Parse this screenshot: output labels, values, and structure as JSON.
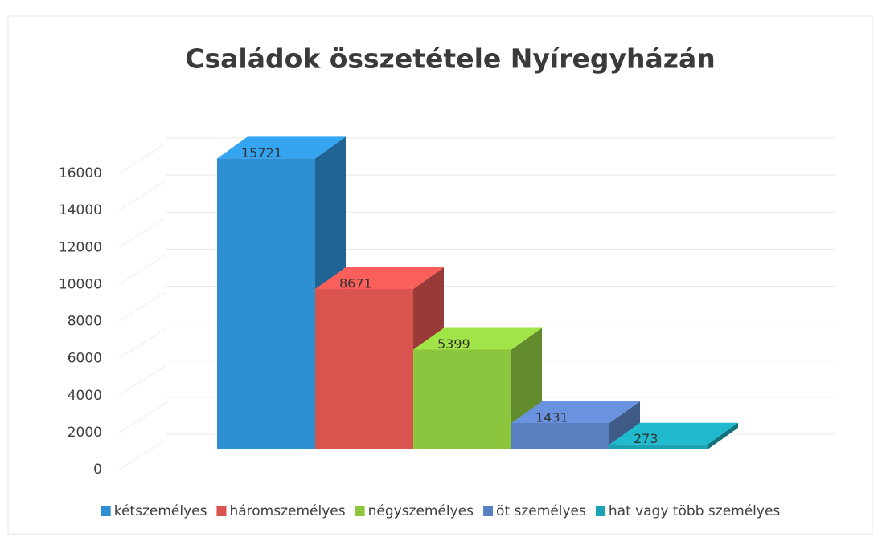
{
  "chart_data": {
    "type": "bar3d",
    "title": "Családok összetétele Nyíregyházán",
    "series": [
      {
        "name": "kétszemélyes",
        "color": "#2e8fd2",
        "values": [
          15721
        ]
      },
      {
        "name": "háromszemélyes",
        "color": "#d9534f",
        "values": [
          8671
        ]
      },
      {
        "name": "négyszemélyes",
        "color": "#8cc63f",
        "values": [
          5399
        ]
      },
      {
        "name": "öt személyes",
        "color": "#5b80c2",
        "values": [
          1431
        ]
      },
      {
        "name": "hat vagy több személyes",
        "color": "#1ba2b3",
        "values": [
          273
        ]
      }
    ],
    "ylim": [
      0,
      16000
    ],
    "yticks": [
      0,
      2000,
      4000,
      6000,
      8000,
      10000,
      12000,
      14000,
      16000
    ],
    "grid": true,
    "legend": "bottom"
  }
}
